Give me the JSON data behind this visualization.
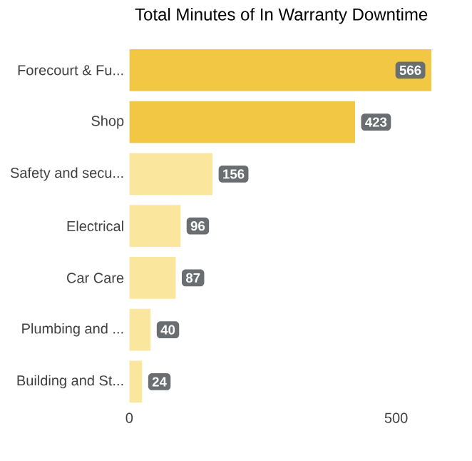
{
  "chart_data": {
    "type": "bar",
    "orientation": "horizontal",
    "title": "Total Minutes of In Warranty Downtime",
    "categories": [
      "Forecourt & Fu...",
      "Shop",
      "Safety and secu...",
      "Electrical",
      "Car Care",
      "Plumbing and ...",
      "Building and St..."
    ],
    "values": [
      566,
      423,
      156,
      96,
      87,
      40,
      24
    ],
    "colors": [
      "#f2c744",
      "#f2c744",
      "#fbe69e",
      "#fbe69e",
      "#fbe69e",
      "#fbe69e",
      "#fbe69e"
    ],
    "xlim": [
      0,
      570
    ],
    "xticks": [
      0,
      500
    ],
    "data_labels": true,
    "grid": false
  }
}
